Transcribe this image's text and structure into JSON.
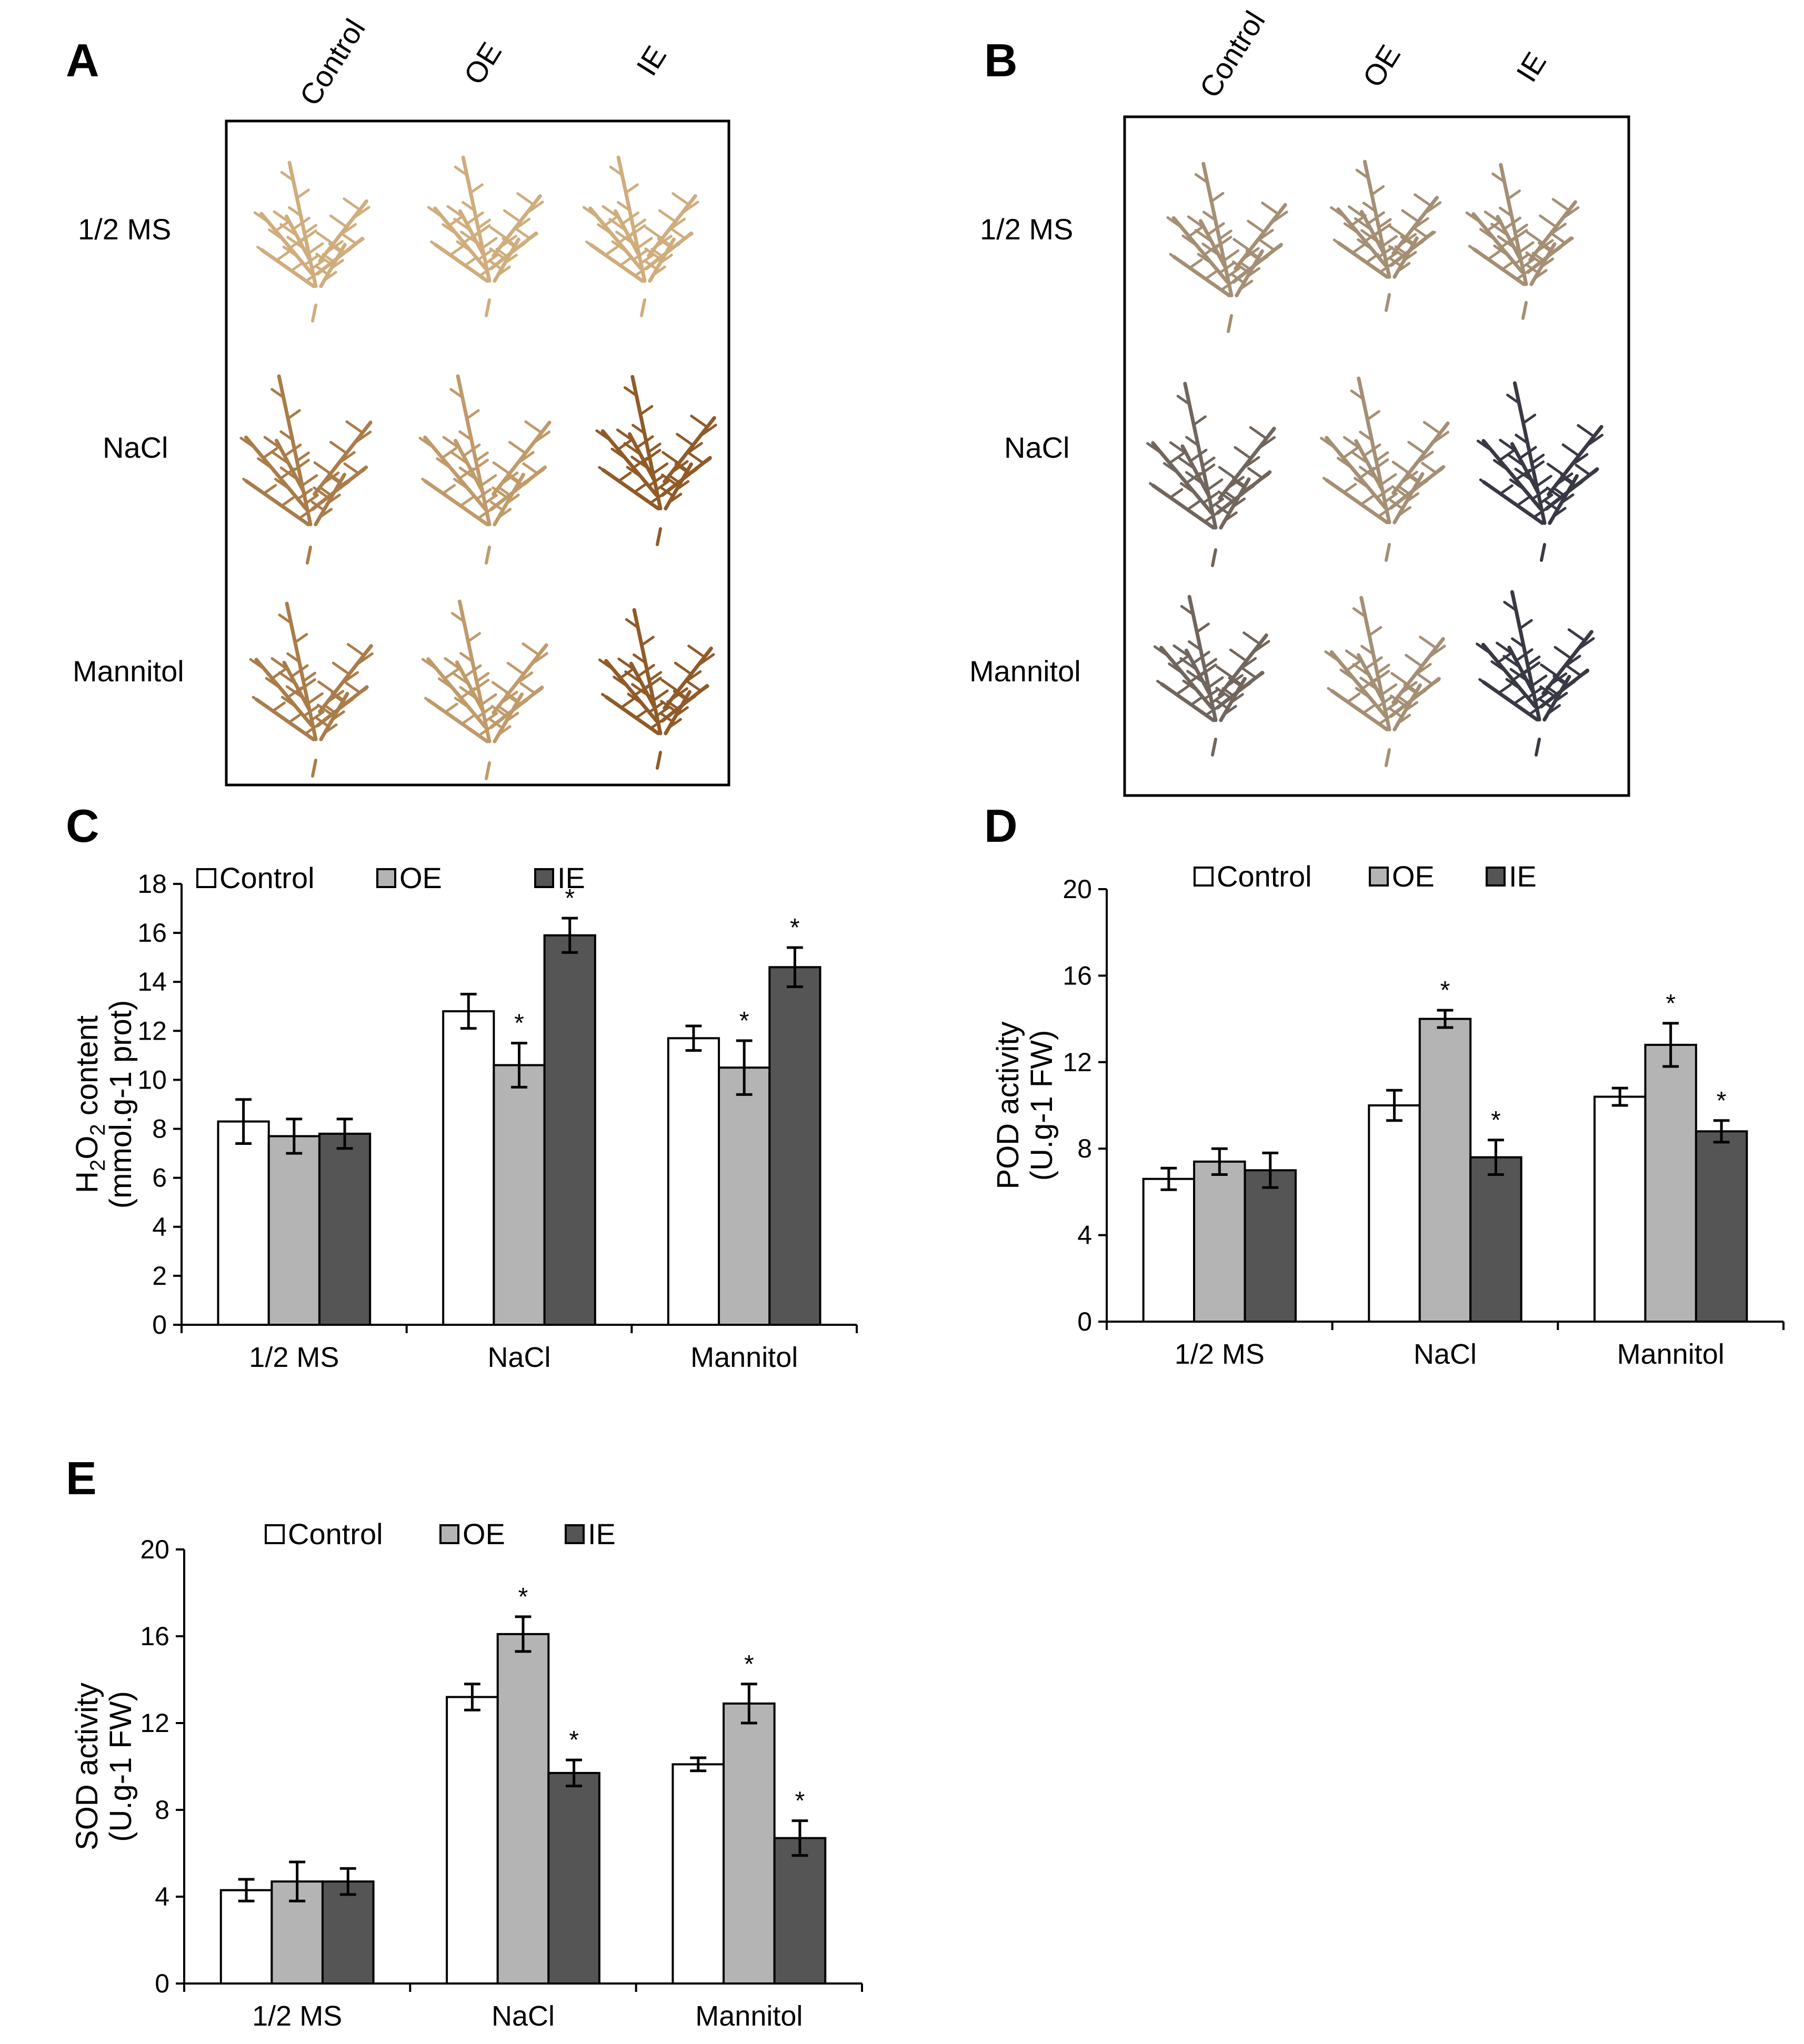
{
  "figure": {
    "panel_a": {
      "letter": "A",
      "columns": [
        "Control",
        "OE",
        "IE"
      ],
      "rows": [
        "1/2  MS",
        "NaCl",
        "Mannitol"
      ],
      "stain_color": "#8a5320"
    },
    "panel_b": {
      "letter": "B",
      "columns": [
        "Control",
        "OE",
        "IE"
      ],
      "rows": [
        "1/2  MS",
        "NaCl",
        "Mannitol"
      ],
      "stain_color": "#2b2e3f"
    }
  },
  "colors": {
    "control": "#ffffff",
    "oe": "#b4b4b4",
    "ie": "#555555",
    "stem_light": "#d9b98a"
  },
  "chart_data": [
    {
      "id": "C",
      "letter": "C",
      "type": "bar",
      "categories": [
        "1/2 MS",
        "NaCl",
        "Mannitol"
      ],
      "series": [
        {
          "name": "Control",
          "values": [
            8.3,
            12.8,
            11.7
          ],
          "errors": [
            0.9,
            0.7,
            0.5
          ],
          "sig": [
            false,
            false,
            false
          ]
        },
        {
          "name": "OE",
          "values": [
            7.7,
            10.6,
            10.5
          ],
          "errors": [
            0.7,
            0.9,
            1.1
          ],
          "sig": [
            false,
            true,
            true
          ]
        },
        {
          "name": "IE",
          "values": [
            7.8,
            15.9,
            14.6
          ],
          "errors": [
            0.6,
            0.7,
            0.8
          ],
          "sig": [
            false,
            true,
            true
          ]
        }
      ],
      "ylabel_lines": [
        "H2O2 content",
        "(mmol.g-1 prot)"
      ],
      "ylim": [
        0,
        18
      ],
      "yticks": [
        0,
        2,
        4,
        6,
        8,
        10,
        12,
        14,
        16,
        18
      ],
      "legend": [
        "Control",
        "OE",
        "IE"
      ],
      "sig_mark": "*"
    },
    {
      "id": "D",
      "letter": "D",
      "type": "bar",
      "categories": [
        "1/2 MS",
        "NaCl",
        "Mannitol"
      ],
      "series": [
        {
          "name": "Control",
          "values": [
            6.6,
            10.0,
            10.4
          ],
          "errors": [
            0.5,
            0.7,
            0.4
          ],
          "sig": [
            false,
            false,
            false
          ]
        },
        {
          "name": "OE",
          "values": [
            7.4,
            14.0,
            12.8
          ],
          "errors": [
            0.6,
            0.4,
            1.0
          ],
          "sig": [
            false,
            true,
            true
          ]
        },
        {
          "name": "IE",
          "values": [
            7.0,
            7.6,
            8.8
          ],
          "errors": [
            0.8,
            0.8,
            0.5
          ],
          "sig": [
            false,
            true,
            true
          ]
        }
      ],
      "ylabel_lines": [
        "POD activity",
        "(U.g-1 FW)"
      ],
      "ylim": [
        0,
        20
      ],
      "yticks": [
        0,
        4,
        8,
        12,
        16,
        20
      ],
      "legend": [
        "Control",
        "OE",
        "IE"
      ],
      "sig_mark": "*"
    },
    {
      "id": "E",
      "letter": "E",
      "type": "bar",
      "categories": [
        "1/2 MS",
        "NaCl",
        "Mannitol"
      ],
      "series": [
        {
          "name": "Control",
          "values": [
            4.3,
            13.2,
            10.1
          ],
          "errors": [
            0.5,
            0.6,
            0.3
          ],
          "sig": [
            false,
            false,
            false
          ]
        },
        {
          "name": "OE",
          "values": [
            4.7,
            16.1,
            12.9
          ],
          "errors": [
            0.9,
            0.8,
            0.9
          ],
          "sig": [
            false,
            true,
            true
          ]
        },
        {
          "name": "IE",
          "values": [
            4.7,
            9.7,
            6.7
          ],
          "errors": [
            0.6,
            0.6,
            0.8
          ],
          "sig": [
            false,
            true,
            true
          ]
        }
      ],
      "ylabel_lines": [
        "SOD activity",
        "(U.g-1 FW)"
      ],
      "ylim": [
        0,
        20
      ],
      "yticks": [
        0,
        4,
        8,
        12,
        16,
        20
      ],
      "legend": [
        "Control",
        "OE",
        "IE"
      ],
      "sig_mark": "*"
    }
  ]
}
